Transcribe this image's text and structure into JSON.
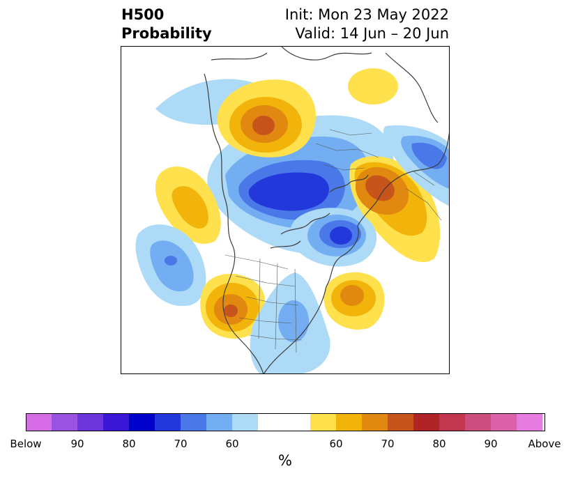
{
  "header": {
    "title_line1": "H500",
    "title_line2": "Probability",
    "init": "Init: Mon 23 May 2022",
    "valid": "Valid: 14 Jun – 20 Jun"
  },
  "map": {
    "land_color": "#ffffff",
    "border_color": "#333333",
    "anomalies": [
      {
        "name": "alaska-bering-high",
        "sign": "above",
        "peak": 75
      },
      {
        "name": "east-siberia-high",
        "sign": "above",
        "peak": 60
      },
      {
        "name": "arctic-low",
        "sign": "below",
        "peak": 85
      },
      {
        "name": "siberia-high",
        "sign": "above",
        "peak": 80
      },
      {
        "name": "greenland-low",
        "sign": "below",
        "peak": 75
      },
      {
        "name": "north-pacific-high",
        "sign": "above",
        "peak": 65
      },
      {
        "name": "northeast-pacific-low",
        "sign": "below",
        "peak": 70
      },
      {
        "name": "western-us-high",
        "sign": "above",
        "peak": 75
      },
      {
        "name": "eastern-us-low",
        "sign": "below",
        "peak": 65
      },
      {
        "name": "north-atlantic-high",
        "sign": "above",
        "peak": 75
      },
      {
        "name": "north-pacific-low-band",
        "sign": "below",
        "peak": 60
      }
    ]
  },
  "colorbar": {
    "colors": [
      "#d66de6",
      "#9a52e0",
      "#6c34db",
      "#3a16d6",
      "#0000cc",
      "#2238db",
      "#4a78e8",
      "#74aef2",
      "#acdaf7",
      "#ffffff",
      "#ffe14d",
      "#f2b40a",
      "#e0880f",
      "#c7541a",
      "#b02427",
      "#c23650",
      "#cc4e7e",
      "#db62aa",
      "#e67be0"
    ],
    "tick_labels": [
      "Below",
      "90",
      "80",
      "70",
      "60",
      "60",
      "70",
      "80",
      "90",
      "Above"
    ],
    "unit_label": "%"
  }
}
